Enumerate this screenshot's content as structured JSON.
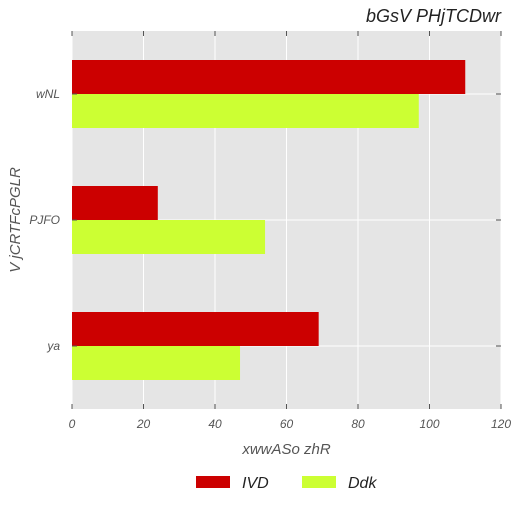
{
  "chart_data": {
    "type": "bar",
    "orientation": "horizontal",
    "title": "bGsV  PHjTCDwr",
    "xlabel": "xwwASo zhR",
    "ylabel": "V jCRTFcPGLR",
    "categories": [
      "ya",
      "PJFO",
      "wNL"
    ],
    "series": [
      {
        "name": "IVD",
        "color": "#cc0000",
        "values": [
          69,
          24,
          110
        ]
      },
      {
        "name": "Ddk",
        "color": "#ccff33",
        "values": [
          47,
          54,
          97
        ]
      }
    ],
    "xlim": [
      0,
      120
    ],
    "xticks": [
      "0",
      "20",
      "40",
      "60",
      "80",
      "100",
      "120"
    ],
    "grid": true,
    "background": "#e5e5e5",
    "legend_position": "bottom-center"
  }
}
